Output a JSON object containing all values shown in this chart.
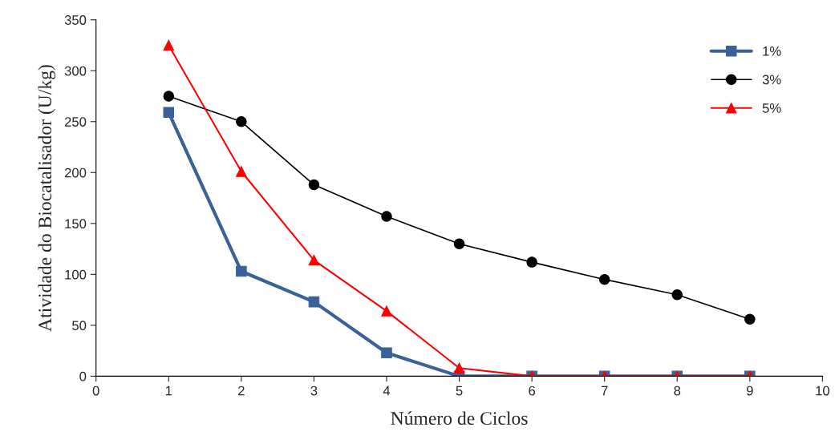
{
  "chart_data": {
    "type": "line",
    "xlabel": "Número de Ciclos",
    "ylabel": "Atividade do Biocatalisador (U/kg)",
    "x": [
      1,
      2,
      3,
      4,
      5,
      6,
      7,
      8,
      9
    ],
    "series": [
      {
        "name": "1%",
        "color": "#3a6198",
        "marker": "square",
        "values": [
          259,
          103,
          73,
          23,
          0,
          0,
          0,
          0,
          0
        ]
      },
      {
        "name": "3%",
        "color": "#000000",
        "marker": "circle",
        "values": [
          275,
          250,
          188,
          157,
          130,
          112,
          95,
          80,
          56
        ]
      },
      {
        "name": "5%",
        "color": "#ff0000",
        "marker": "triangle",
        "values": [
          325,
          201,
          114,
          64,
          8,
          0,
          0,
          0,
          0
        ]
      }
    ],
    "xlim": [
      0,
      10
    ],
    "xticks": [
      0,
      1,
      2,
      3,
      4,
      5,
      6,
      7,
      8,
      9,
      10
    ],
    "ylim": [
      0,
      350
    ],
    "yticks": [
      0,
      50,
      100,
      150,
      200,
      250,
      300,
      350
    ],
    "grid": false,
    "legend": "top right",
    "line_style": "solid"
  }
}
